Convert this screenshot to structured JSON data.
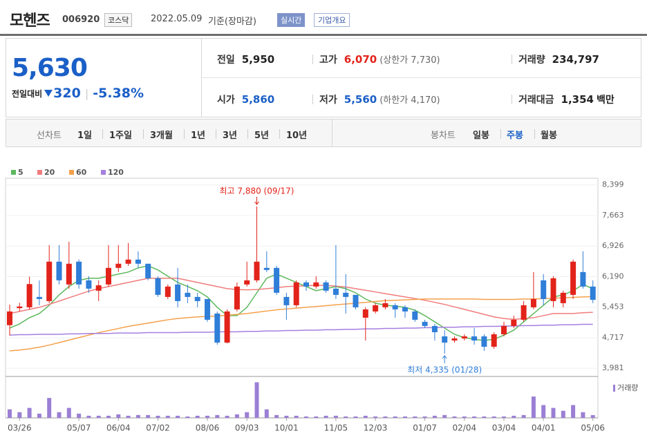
{
  "header": {
    "title": "모헨즈",
    "code": "006920",
    "market": "코스닥",
    "date": "2022.05.09",
    "basis": "기준(장마감)",
    "realtime": "실시간",
    "company": "기업개요"
  },
  "summary": {
    "price": "5,630",
    "change_label": "전일대비",
    "change": "320",
    "change_rate": "-5.38%"
  },
  "stats": [
    {
      "label": "전일",
      "value": "5,950",
      "color": "#222222"
    },
    {
      "label": "고가",
      "value": "6,070",
      "note": "(상한가 7,730)",
      "color": "#e2231a"
    },
    {
      "label": "거래량",
      "value": "234,797",
      "color": "#222222"
    },
    {
      "label": "시가",
      "value": "5,860",
      "color": "#1a5fc7"
    },
    {
      "label": "저가",
      "value": "5,560",
      "note": "(하한가 4,170)",
      "color": "#1a5fc7"
    },
    {
      "label": "거래대금",
      "value": "1,354",
      "unit": "백만",
      "color": "#222222"
    }
  ],
  "tabs": {
    "line_label": "선차트",
    "line": [
      "1일",
      "1주일",
      "3개월",
      "1년",
      "3년",
      "5년",
      "10년"
    ],
    "candle_label": "봉차트",
    "candle": [
      "일봉",
      "주봉",
      "월봉"
    ],
    "candle_active": 1
  },
  "chart_data": {
    "type": "candlestick",
    "categories": [
      null,
      "03/26",
      null,
      null,
      null,
      null,
      null,
      "05/07",
      null,
      null,
      null,
      "06/04",
      null,
      null,
      null,
      "07/02",
      null,
      null,
      null,
      null,
      "08/06",
      null,
      null,
      null,
      "09/03",
      null,
      null,
      null,
      "10/01",
      null,
      null,
      null,
      null,
      "11/05",
      null,
      null,
      null,
      "12/03",
      null,
      null,
      null,
      null,
      "01/07",
      null,
      null,
      null,
      "02/04",
      null,
      null,
      null,
      "03/04",
      null,
      null,
      null,
      "04/01",
      null,
      null,
      null,
      null,
      "05/06"
    ],
    "open": [
      5020,
      5430,
      5450,
      5700,
      5600,
      6550,
      6000,
      6550,
      6100,
      5850,
      6000,
      6400,
      6500,
      6600,
      6500,
      6150,
      5700,
      6000,
      5800,
      5700,
      5650,
      5300,
      4600,
      5400,
      6000,
      6100,
      6400,
      6400,
      5700,
      5500,
      6050,
      5950,
      6050,
      5900,
      5800,
      5750,
      5200,
      5350,
      5450,
      5500,
      5450,
      5350,
      5100,
      5000,
      4750,
      4650,
      4700,
      4750,
      4750,
      4500,
      4800,
      5000,
      5150,
      5450,
      6100,
      5600,
      5550,
      5750,
      6300,
      5950
    ],
    "high": [
      5520,
      5560,
      6190,
      6100,
      6950,
      6950,
      7030,
      6600,
      6200,
      6100,
      6950,
      6950,
      7000,
      6800,
      6500,
      6200,
      6000,
      6400,
      6000,
      5800,
      5650,
      5350,
      5400,
      6050,
      6550,
      7880,
      6800,
      6450,
      5800,
      6100,
      6100,
      6200,
      6100,
      6950,
      6250,
      5750,
      5450,
      5550,
      5650,
      5550,
      5500,
      5400,
      5150,
      5050,
      4900,
      4750,
      4800,
      4950,
      4800,
      4850,
      5100,
      5250,
      5600,
      6300,
      6250,
      6200,
      5850,
      6600,
      6800,
      6100
    ],
    "low": [
      4770,
      5350,
      5390,
      5500,
      5550,
      6000,
      5900,
      5900,
      5800,
      5600,
      5950,
      6300,
      6450,
      6400,
      6100,
      5700,
      5650,
      5450,
      5550,
      5450,
      5100,
      4550,
      4580,
      5350,
      5950,
      6050,
      6300,
      5750,
      5150,
      5450,
      5850,
      5900,
      5800,
      5650,
      5300,
      5400,
      4650,
      5300,
      5400,
      5200,
      5200,
      5100,
      4950,
      4650,
      4335,
      4600,
      4650,
      4550,
      4400,
      4450,
      4750,
      4950,
      5100,
      5400,
      5500,
      5450,
      5450,
      5650,
      5900,
      5550
    ],
    "close": [
      5350,
      5470,
      6010,
      5650,
      6550,
      6100,
      6500,
      6000,
      5900,
      5980,
      6400,
      6500,
      6600,
      6500,
      6150,
      5750,
      5950,
      5600,
      5700,
      5600,
      5150,
      4600,
      5350,
      5950,
      6100,
      6550,
      6350,
      5800,
      5500,
      6050,
      5950,
      6050,
      5850,
      5750,
      5700,
      5450,
      5400,
      5500,
      5550,
      5400,
      5350,
      5150,
      5000,
      4850,
      4600,
      4700,
      4750,
      4650,
      4500,
      4800,
      5000,
      5150,
      5500,
      5650,
      5650,
      6150,
      5800,
      6550,
      5950,
      5630
    ],
    "up_color": "#e2231a",
    "down_color": "#2f7ed8",
    "ylim": [
      3784,
      8561
    ],
    "yticks": [
      {
        "value": 8399,
        "label": "8,399"
      },
      {
        "value": 7663,
        "label": "7,663"
      },
      {
        "value": 6926,
        "label": "6,926"
      },
      {
        "value": 6190,
        "label": "6,190"
      },
      {
        "value": 5453,
        "label": "5,453"
      },
      {
        "value": 4717,
        "label": "4,717"
      },
      {
        "value": 3981,
        "label": "3,981"
      }
    ],
    "grid": true,
    "series": [
      {
        "name": "5",
        "color": "#5cb85c",
        "values": [
          4950,
          5050,
          5200,
          5300,
          5500,
          5750,
          5950,
          6100,
          6150,
          6150,
          6200,
          6250,
          6300,
          6400,
          6450,
          6350,
          6200,
          6050,
          5950,
          5850,
          5700,
          5450,
          5250,
          5250,
          5450,
          5800,
          6150,
          6250,
          6150,
          6050,
          5950,
          5850,
          5900,
          5950,
          5900,
          5800,
          5650,
          5550,
          5500,
          5480,
          5450,
          5380,
          5250,
          5100,
          4950,
          4800,
          4720,
          4680,
          4650,
          4680,
          4780,
          4900,
          5100,
          5300,
          5500,
          5700,
          5750,
          5850,
          6000,
          5900
        ]
      },
      {
        "name": "20",
        "color": "#f07c7c",
        "values": [
          5300,
          5350,
          5400,
          5450,
          5520,
          5600,
          5680,
          5760,
          5840,
          5900,
          5950,
          6000,
          6050,
          6100,
          6150,
          6150,
          6150,
          6150,
          6100,
          6050,
          6000,
          5950,
          5900,
          5880,
          5870,
          5880,
          5900,
          5920,
          5950,
          5960,
          5970,
          5980,
          5980,
          5960,
          5940,
          5900,
          5860,
          5820,
          5780,
          5740,
          5700,
          5660,
          5620,
          5570,
          5520,
          5460,
          5400,
          5340,
          5280,
          5220,
          5180,
          5160,
          5180,
          5200,
          5250,
          5300,
          5300,
          5300,
          5320,
          5330
        ]
      },
      {
        "name": "60",
        "color": "#f5a04a",
        "values": [
          4400,
          4420,
          4450,
          4490,
          4540,
          4600,
          4660,
          4720,
          4780,
          4840,
          4890,
          4940,
          4990,
          5030,
          5070,
          5110,
          5150,
          5180,
          5200,
          5220,
          5230,
          5240,
          5260,
          5280,
          5300,
          5330,
          5360,
          5390,
          5410,
          5430,
          5450,
          5470,
          5490,
          5510,
          5530,
          5550,
          5570,
          5590,
          5610,
          5620,
          5630,
          5640,
          5650,
          5650,
          5650,
          5650,
          5650,
          5650,
          5640,
          5640,
          5640,
          5640,
          5650,
          5650,
          5660,
          5670,
          5680,
          5690,
          5700,
          5710
        ]
      },
      {
        "name": "120",
        "color": "#a57fe0",
        "values": [
          4780,
          4790,
          4790,
          4800,
          4800,
          4800,
          4810,
          4810,
          4820,
          4820,
          4820,
          4830,
          4830,
          4830,
          4840,
          4840,
          4840,
          4840,
          4850,
          4850,
          4850,
          4860,
          4860,
          4860,
          4870,
          4870,
          4880,
          4880,
          4890,
          4890,
          4900,
          4900,
          4910,
          4910,
          4920,
          4920,
          4930,
          4930,
          4940,
          4940,
          4950,
          4950,
          4960,
          4960,
          4970,
          4970,
          4980,
          4980,
          4990,
          4990,
          5000,
          5000,
          5010,
          5010,
          5020,
          5020,
          5030,
          5030,
          5040,
          5040
        ]
      }
    ],
    "volume_name": "거래량",
    "volume_color": "#9b7fd4",
    "volume_ylim": [
      0,
      3200000
    ],
    "volume": [
      720000,
      480000,
      840000,
      360000,
      1680000,
      480000,
      840000,
      360000,
      180000,
      180000,
      180000,
      300000,
      180000,
      240000,
      240000,
      180000,
      180000,
      180000,
      120000,
      180000,
      180000,
      240000,
      180000,
      300000,
      480000,
      3000000,
      720000,
      240000,
      180000,
      180000,
      120000,
      120000,
      180000,
      180000,
      120000,
      120000,
      180000,
      120000,
      120000,
      120000,
      120000,
      120000,
      120000,
      180000,
      240000,
      120000,
      120000,
      120000,
      120000,
      120000,
      120000,
      180000,
      240000,
      1800000,
      1080000,
      840000,
      600000,
      1080000,
      480000,
      234797
    ],
    "annotations": {
      "high": "최고 7,880 (09/17)",
      "low": "최저 4,335 (01/28)"
    }
  }
}
